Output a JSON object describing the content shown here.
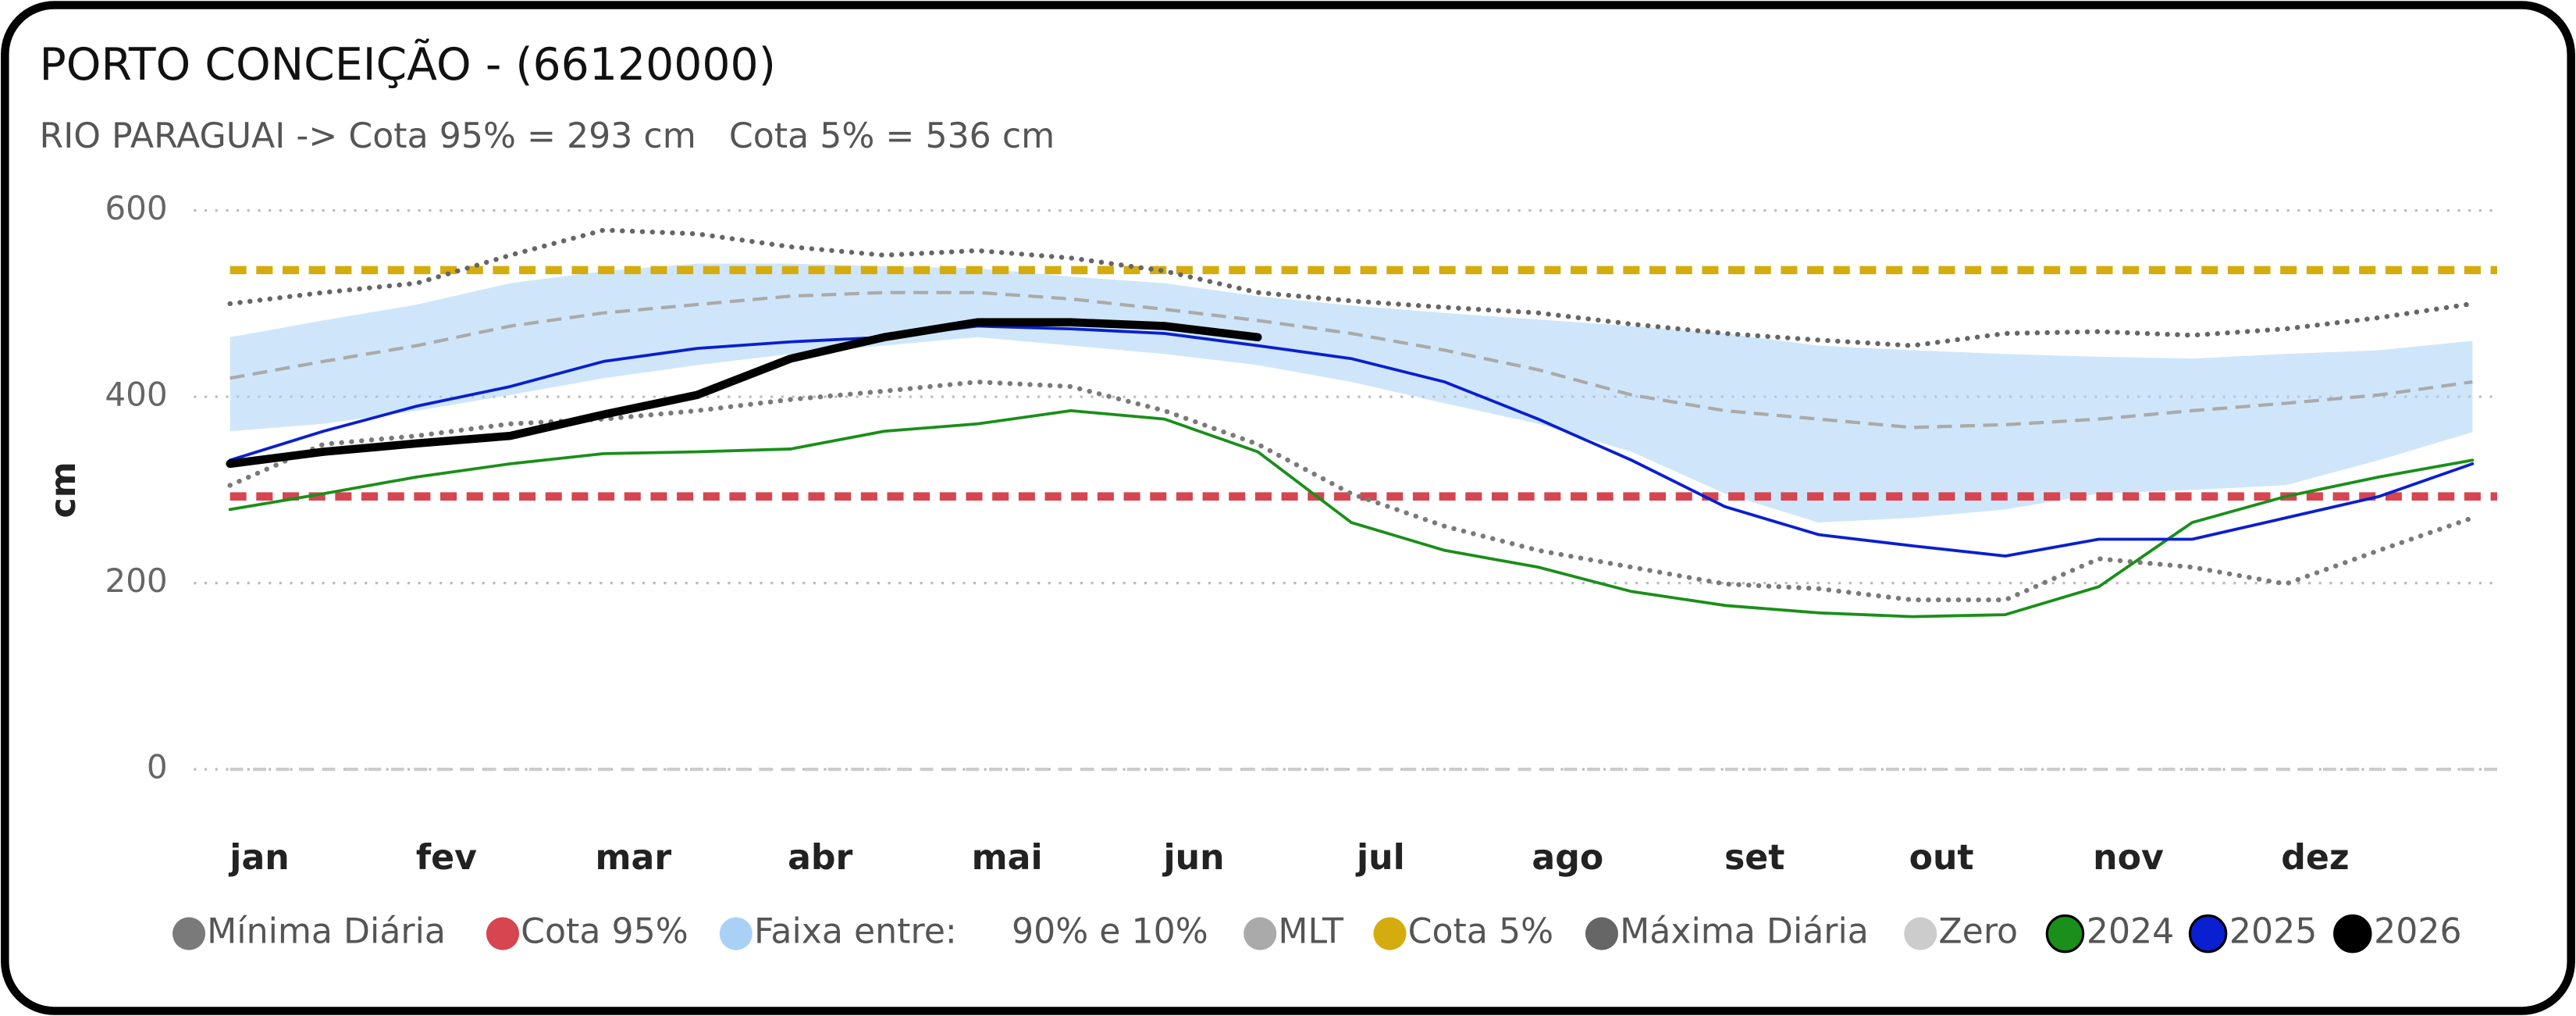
{
  "chart_data": {
    "type": "line",
    "title": "PORTO CONCEIÇÃO - (66120000)",
    "subtitle": "RIO PARAGUAI -> Cota 95% = 293 cm   Cota 5% = 536 cm",
    "y_label": "cm",
    "categories": [
      "jan",
      null,
      "fev",
      null,
      "mar",
      null,
      "abr",
      null,
      "mai",
      null,
      "jun",
      null,
      "jul",
      null,
      "ago",
      null,
      "set",
      null,
      "out",
      null,
      "nov",
      null,
      "dez",
      null,
      null
    ],
    "ylim": [
      0,
      600
    ],
    "yticks": [
      0,
      200,
      400,
      600
    ],
    "grid": true,
    "series": [
      {
        "name": "Mínima Diária",
        "color": "#7a7a7a",
        "style": "dotted",
        "values": [
          305,
          349,
          358,
          371,
          376,
          385,
          397,
          406,
          416,
          411,
          385,
          349,
          296,
          261,
          235,
          217,
          199,
          194,
          182,
          182,
          226,
          217,
          199,
          235,
          270
        ]
      },
      {
        "name": "Cota 95%",
        "color": "#d64550",
        "style": "ref",
        "value": 293
      },
      {
        "name": "Faixa entre:     90% e 10%",
        "color": "#a8d1f5",
        "style": "band",
        "low": [
          363,
          371,
          385,
          402,
          420,
          434,
          446,
          455,
          464,
          455,
          446,
          434,
          416,
          393,
          371,
          341,
          296,
          265,
          270,
          279,
          296,
          300,
          305,
          332,
          362
        ],
        "high": [
          464,
          482,
          499,
          522,
          535,
          543,
          543,
          540,
          538,
          529,
          522,
          508,
          498,
          490,
          483,
          476,
          468,
          455,
          450,
          446,
          443,
          441,
          446,
          450,
          460
        ]
      },
      {
        "name": "MLT",
        "color": "#aaaaaa",
        "style": "dashed",
        "values": [
          420,
          438,
          455,
          476,
          490,
          499,
          508,
          512,
          512,
          505,
          494,
          482,
          468,
          450,
          429,
          402,
          385,
          376,
          367,
          370,
          376,
          385,
          393,
          402,
          416
        ]
      },
      {
        "name": "Cota 5%",
        "color": "#d4ac0d",
        "style": "ref",
        "value": 536
      },
      {
        "name": "Máxima Diária",
        "color": "#666666",
        "style": "dotted",
        "values": [
          500,
          512,
          522,
          552,
          579,
          575,
          561,
          552,
          557,
          549,
          535,
          512,
          503,
          496,
          490,
          478,
          468,
          461,
          455,
          468,
          470,
          466,
          473,
          485,
          500
        ]
      },
      {
        "name": "Zero",
        "color": "#cccccc",
        "style": "ref",
        "value": 0
      },
      {
        "name": "2024",
        "color": "#1a8f1a",
        "style": "solid",
        "values": [
          279,
          296,
          314,
          328,
          339,
          341,
          344,
          363,
          371,
          385,
          376,
          341,
          265,
          235,
          217,
          191,
          176,
          168,
          164,
          166,
          196,
          265,
          293,
          314,
          332
        ]
      },
      {
        "name": "2025",
        "color": "#0a1fcf",
        "style": "solid",
        "values": [
          332,
          363,
          390,
          411,
          438,
          452,
          459,
          464,
          476,
          473,
          468,
          455,
          441,
          416,
          376,
          332,
          282,
          252,
          240,
          229,
          247,
          247,
          270,
          293,
          328
        ]
      },
      {
        "name": "2026",
        "color": "#000000",
        "style": "thick",
        "values": [
          328,
          341,
          350,
          358,
          381,
          402,
          441,
          464,
          480,
          480,
          476,
          464,
          null,
          null,
          null,
          null,
          null,
          null,
          null,
          null,
          null,
          null,
          null,
          null,
          null
        ]
      }
    ]
  }
}
